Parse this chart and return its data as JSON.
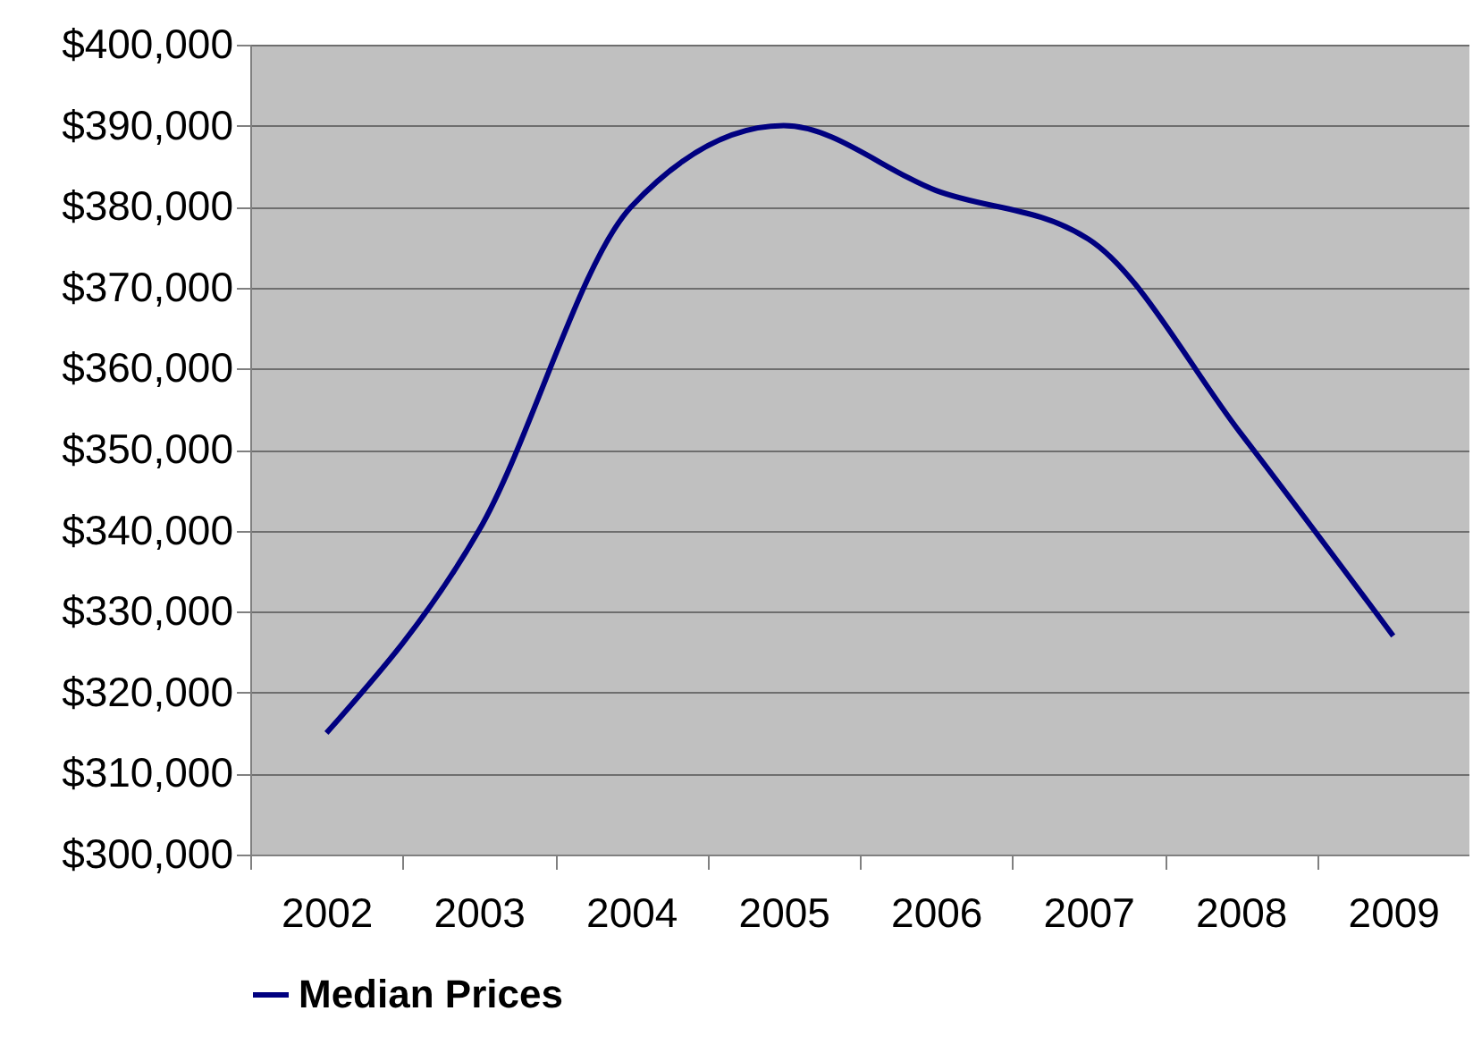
{
  "chart_data": {
    "type": "line",
    "categories": [
      "2002",
      "2003",
      "2004",
      "2005",
      "2006",
      "2007",
      "2008",
      "2009"
    ],
    "series": [
      {
        "name": "Median Prices",
        "color": "#000080",
        "values": [
          315000,
          340000,
          380000,
          390000,
          382000,
          376000,
          352000,
          327000
        ]
      }
    ],
    "ylim": [
      300000,
      400000
    ],
    "yticks": [
      {
        "value": 300000,
        "label": "$300,000"
      },
      {
        "value": 310000,
        "label": "$310,000"
      },
      {
        "value": 320000,
        "label": "$320,000"
      },
      {
        "value": 330000,
        "label": "$330,000"
      },
      {
        "value": 340000,
        "label": "$340,000"
      },
      {
        "value": 350000,
        "label": "$350,000"
      },
      {
        "value": 360000,
        "label": "$360,000"
      },
      {
        "value": 370000,
        "label": "$370,000"
      },
      {
        "value": 380000,
        "label": "$380,000"
      },
      {
        "value": 390000,
        "label": "$390,000"
      },
      {
        "value": 400000,
        "label": "$400,000"
      }
    ],
    "grid": "y",
    "legend": "bottom",
    "marker": "none",
    "line_style": "solid"
  }
}
